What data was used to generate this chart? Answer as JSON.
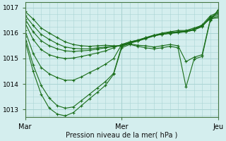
{
  "title": "",
  "xlabel": "Pression niveau de la mer( hPa )",
  "ylabel": "",
  "ylim": [
    1012.7,
    1017.2
  ],
  "xlim": [
    0,
    48
  ],
  "bg_color": "#d4eeee",
  "grid_color": "#aad4d4",
  "line_color": "#1a6e1a",
  "tick_labels_x": [
    [
      0,
      "Mar"
    ],
    [
      24,
      "Mer"
    ],
    [
      48,
      "Jeu"
    ]
  ],
  "yticks": [
    1013,
    1014,
    1015,
    1016,
    1017
  ],
  "vline_x": 24,
  "series": [
    [
      0,
      1016.85,
      2,
      1016.55,
      4,
      1016.2,
      6,
      1016.0,
      8,
      1015.82,
      10,
      1015.65,
      12,
      1015.55,
      14,
      1015.5,
      16,
      1015.48,
      18,
      1015.5,
      20,
      1015.52,
      22,
      1015.5,
      24,
      1015.5,
      26,
      1015.6,
      28,
      1015.7,
      30,
      1015.8,
      32,
      1015.9,
      34,
      1016.0,
      36,
      1016.05,
      38,
      1016.1,
      40,
      1016.1,
      42,
      1016.2,
      44,
      1016.3,
      46,
      1016.55,
      48,
      1016.6
    ],
    [
      0,
      1016.7,
      2,
      1016.3,
      4,
      1015.95,
      6,
      1015.75,
      8,
      1015.58,
      10,
      1015.45,
      12,
      1015.4,
      14,
      1015.38,
      16,
      1015.38,
      18,
      1015.42,
      20,
      1015.45,
      22,
      1015.48,
      24,
      1015.5,
      26,
      1015.6,
      28,
      1015.68,
      30,
      1015.78,
      32,
      1015.88,
      34,
      1015.95,
      36,
      1016.0,
      38,
      1016.05,
      40,
      1016.07,
      42,
      1016.15,
      44,
      1016.28,
      46,
      1016.58,
      48,
      1016.65
    ],
    [
      0,
      1016.55,
      2,
      1016.05,
      4,
      1015.7,
      6,
      1015.5,
      8,
      1015.38,
      10,
      1015.3,
      12,
      1015.28,
      14,
      1015.3,
      16,
      1015.32,
      18,
      1015.37,
      20,
      1015.42,
      22,
      1015.47,
      24,
      1015.52,
      26,
      1015.62,
      28,
      1015.7,
      30,
      1015.8,
      32,
      1015.9,
      34,
      1015.95,
      36,
      1015.98,
      38,
      1016.02,
      40,
      1016.05,
      42,
      1016.12,
      44,
      1016.25,
      46,
      1016.6,
      48,
      1016.72
    ],
    [
      0,
      1016.4,
      2,
      1015.75,
      4,
      1015.35,
      6,
      1015.15,
      8,
      1015.05,
      10,
      1015.0,
      12,
      1015.02,
      14,
      1015.08,
      16,
      1015.15,
      18,
      1015.22,
      20,
      1015.3,
      22,
      1015.42,
      24,
      1015.55,
      26,
      1015.65,
      28,
      1015.72,
      30,
      1015.82,
      32,
      1015.9,
      34,
      1015.95,
      36,
      1016.0,
      38,
      1016.02,
      40,
      1016.05,
      42,
      1016.12,
      44,
      1016.27,
      46,
      1016.62,
      48,
      1016.78
    ],
    [
      0,
      1016.1,
      2,
      1015.2,
      4,
      1014.65,
      6,
      1014.4,
      8,
      1014.25,
      10,
      1014.15,
      12,
      1014.15,
      14,
      1014.28,
      16,
      1014.45,
      18,
      1014.6,
      20,
      1014.78,
      22,
      1015.0,
      24,
      1015.55,
      26,
      1015.65,
      28,
      1015.72,
      30,
      1015.82,
      32,
      1015.92,
      34,
      1015.97,
      36,
      1016.02,
      38,
      1016.05,
      40,
      1016.08,
      42,
      1016.15,
      44,
      1016.32,
      46,
      1016.67,
      48,
      1016.82
    ],
    [
      0,
      1015.85,
      2,
      1014.75,
      4,
      1013.95,
      6,
      1013.45,
      8,
      1013.15,
      10,
      1013.05,
      12,
      1013.1,
      14,
      1013.35,
      16,
      1013.6,
      18,
      1013.85,
      20,
      1014.1,
      22,
      1014.42,
      24,
      1015.48,
      26,
      1015.58,
      28,
      1015.52,
      30,
      1015.5,
      32,
      1015.45,
      34,
      1015.5,
      36,
      1015.55,
      38,
      1015.5,
      40,
      1014.88,
      42,
      1015.05,
      44,
      1015.15,
      46,
      1016.52,
      48,
      1016.88
    ],
    [
      0,
      1015.7,
      2,
      1014.5,
      4,
      1013.6,
      6,
      1013.05,
      8,
      1012.82,
      10,
      1012.75,
      12,
      1012.88,
      14,
      1013.15,
      16,
      1013.42,
      18,
      1013.68,
      20,
      1013.95,
      22,
      1014.38,
      24,
      1015.42,
      26,
      1015.55,
      28,
      1015.48,
      30,
      1015.42,
      32,
      1015.38,
      34,
      1015.42,
      36,
      1015.48,
      38,
      1015.42,
      40,
      1013.88,
      42,
      1014.98,
      44,
      1015.08,
      46,
      1016.48,
      48,
      1016.92
    ]
  ],
  "minor_xtick_step": 2,
  "minor_ytick_step": 0.25
}
